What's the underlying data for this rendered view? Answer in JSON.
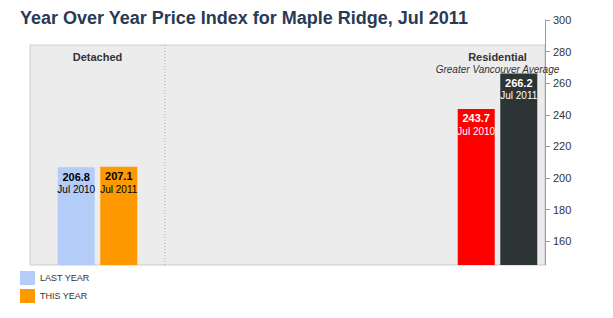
{
  "chart_data": {
    "type": "bar",
    "title": "Year Over Year Price Index for Maple Ridge, Jul 2011",
    "categories": [
      "Detached",
      "Residential"
    ],
    "category_subtitles": [
      null,
      "Greater Vancouver Average"
    ],
    "series": [
      {
        "name": "LAST YEAR",
        "color": "#b4ccf8",
        "colors": [
          "#b4ccf8",
          "#ff0000"
        ],
        "period": "Jul 2010",
        "values": [
          206.8,
          243.7
        ]
      },
      {
        "name": "THIS YEAR",
        "color": "#ff9900",
        "colors": [
          "#ff9900",
          "#2c3436"
        ],
        "period": "Jul 2011",
        "values": [
          207.1,
          266.2
        ]
      }
    ],
    "ylim": [
      145,
      300
    ],
    "yticks": [
      160,
      180,
      200,
      220,
      240,
      260,
      280,
      300
    ],
    "grid": false,
    "data_labels": true,
    "legend": "bottom-left"
  }
}
